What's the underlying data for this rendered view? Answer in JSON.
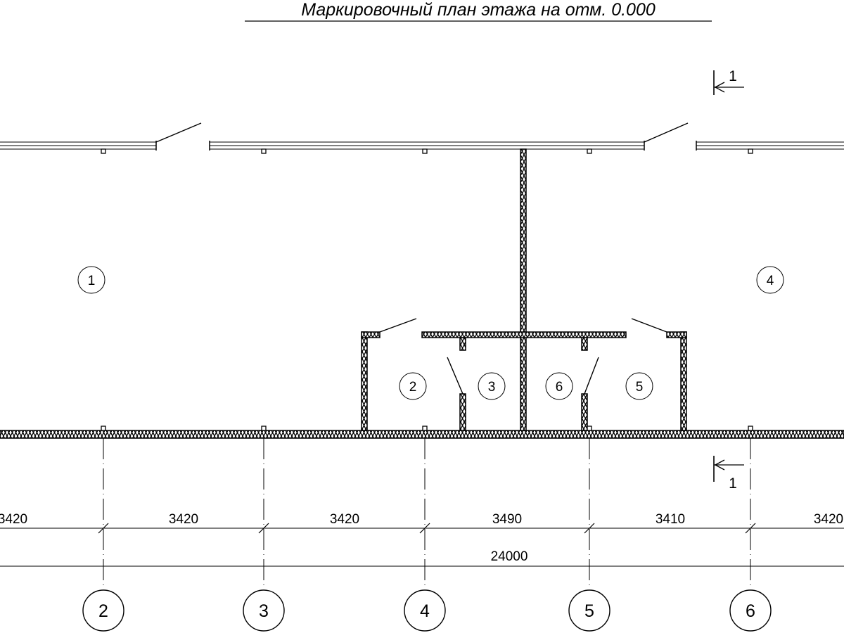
{
  "title": "Маркировочный план этажа на отм. 0.000",
  "section_marks": [
    {
      "label": "1"
    },
    {
      "label": "1"
    }
  ],
  "rooms": [
    {
      "label": "1"
    },
    {
      "label": "4"
    },
    {
      "label": "2"
    },
    {
      "label": "3"
    },
    {
      "label": "6"
    },
    {
      "label": "5"
    }
  ],
  "axes": [
    {
      "label": "2"
    },
    {
      "label": "3"
    },
    {
      "label": "4"
    },
    {
      "label": "5"
    },
    {
      "label": "6"
    }
  ],
  "dimensions": [
    "3420",
    "3420",
    "3420",
    "3490",
    "3410",
    "3420"
  ],
  "overall_dimension": "24000",
  "colors": {
    "line": "#000000",
    "background": "#ffffff"
  }
}
